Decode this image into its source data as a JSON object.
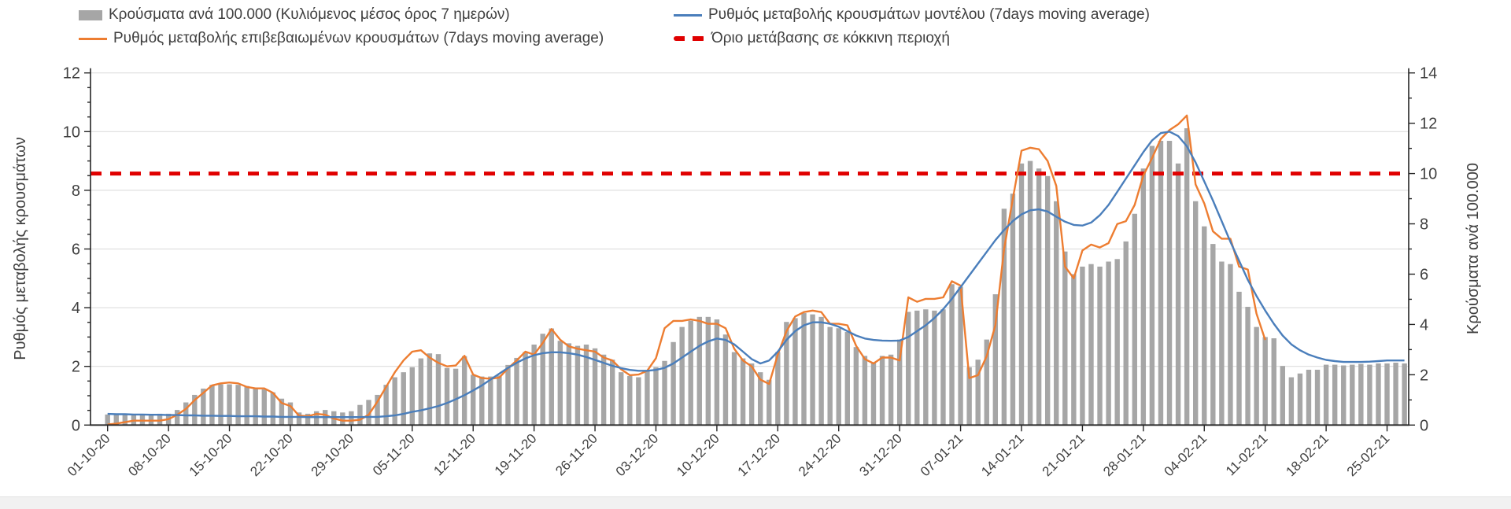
{
  "chart_data": {
    "type": "combo",
    "title": "",
    "grid": true,
    "legend_position": "top",
    "start_date": "01-10-20",
    "x_tick_interval_days": 7,
    "x_tick_labels": [
      "01-10-20",
      "08-10-20",
      "15-10-20",
      "22-10-20",
      "29-10-20",
      "05-11-20",
      "12-11-20",
      "19-11-20",
      "26-11-20",
      "03-12-20",
      "10-12-20",
      "17-12-20",
      "24-12-20",
      "31-12-20",
      "07-01-21",
      "14-01-21",
      "21-01-21",
      "28-01-21",
      "04-02-21",
      "11-02-21",
      "18-02-21",
      "25-02-21"
    ],
    "left_axis": {
      "label": "Ρυθμός μεταβολής κρουσμάτων",
      "min": 0,
      "max": 12,
      "tick_step": 2,
      "tick_values": [
        0,
        2,
        4,
        6,
        8,
        10,
        12
      ],
      "minor_step": 0.5
    },
    "right_axis": {
      "label": "Κρούσματα ανά 100.000",
      "min": 0,
      "max": 14,
      "tick_step": 2,
      "tick_values": [
        0,
        2,
        4,
        6,
        8,
        10,
        12,
        14
      ],
      "minor_step": 1
    },
    "series": [
      {
        "name": "Κρούσματα ανά 100.000 (Κυλιόμενος μέσος όρος 7 ημερών)",
        "type": "bar",
        "axis": "right",
        "color": "#a6a6a6",
        "values": [
          0.42,
          0.4,
          0.42,
          0.4,
          0.42,
          0.42,
          0.45,
          0.45,
          0.6,
          0.9,
          1.2,
          1.45,
          1.6,
          1.62,
          1.62,
          1.6,
          1.55,
          1.45,
          1.42,
          1.3,
          1.05,
          0.9,
          0.5,
          0.45,
          0.55,
          0.6,
          0.55,
          0.5,
          0.55,
          0.8,
          1.0,
          1.2,
          1.6,
          1.9,
          2.1,
          2.3,
          2.65,
          2.85,
          2.82,
          2.27,
          2.24,
          2.74,
          2.0,
          1.93,
          1.93,
          1.97,
          2.39,
          2.67,
          2.91,
          3.2,
          3.63,
          3.84,
          3.35,
          3.25,
          3.15,
          3.2,
          3.05,
          2.8,
          2.6,
          2.1,
          1.95,
          1.9,
          2.15,
          2.3,
          2.55,
          3.3,
          3.9,
          4.15,
          4.3,
          4.3,
          4.2,
          3.6,
          2.9,
          2.65,
          2.45,
          2.1,
          1.8,
          2.9,
          4.1,
          4.25,
          4.45,
          4.4,
          4.3,
          3.9,
          3.85,
          3.7,
          3.1,
          2.75,
          2.5,
          2.75,
          2.8,
          3.4,
          4.5,
          4.55,
          4.6,
          4.55,
          4.6,
          5.6,
          5.5,
          2.3,
          2.6,
          3.4,
          5.2,
          8.6,
          9.2,
          10.4,
          10.5,
          10.2,
          9.9,
          8.9,
          6.9,
          6.0,
          6.3,
          6.4,
          6.3,
          6.5,
          6.6,
          7.3,
          8.4,
          10.2,
          11.1,
          11.3,
          11.3,
          10.4,
          11.8,
          8.9,
          7.9,
          7.2,
          6.5,
          6.4,
          5.3,
          4.7,
          3.9,
          3.5,
          3.45,
          2.35,
          1.9,
          2.05,
          2.2,
          2.2,
          2.4,
          2.4,
          2.37,
          2.4,
          2.43,
          2.4,
          2.45,
          2.45,
          2.48,
          2.45
        ]
      },
      {
        "name": "Ρυθμός μεταβολής επιβεβαιωμένων κρουσμάτων (7days moving average)",
        "type": "line",
        "axis": "left",
        "color": "#ed7d31",
        "values": [
          0.02,
          0.05,
          0.1,
          0.15,
          0.15,
          0.15,
          0.15,
          0.2,
          0.35,
          0.55,
          0.85,
          1.1,
          1.35,
          1.42,
          1.45,
          1.42,
          1.3,
          1.25,
          1.25,
          1.1,
          0.75,
          0.65,
          0.32,
          0.3,
          0.38,
          0.35,
          0.22,
          0.15,
          0.15,
          0.18,
          0.35,
          0.8,
          1.3,
          1.8,
          2.2,
          2.5,
          2.55,
          2.3,
          2.12,
          2.0,
          2.03,
          2.36,
          1.72,
          1.6,
          1.58,
          1.62,
          1.93,
          2.2,
          2.5,
          2.4,
          2.8,
          3.27,
          2.91,
          2.68,
          2.6,
          2.55,
          2.5,
          2.3,
          2.2,
          1.9,
          1.7,
          1.72,
          1.85,
          2.28,
          3.3,
          3.55,
          3.55,
          3.6,
          3.55,
          3.45,
          3.45,
          3.3,
          2.6,
          2.2,
          2.0,
          1.55,
          1.4,
          2.4,
          3.2,
          3.7,
          3.85,
          3.9,
          3.85,
          3.45,
          3.45,
          3.4,
          2.7,
          2.25,
          2.1,
          2.3,
          2.3,
          2.2,
          4.35,
          4.2,
          4.3,
          4.3,
          4.35,
          4.9,
          4.75,
          1.6,
          1.7,
          2.35,
          3.4,
          6.0,
          7.7,
          9.35,
          9.45,
          9.4,
          9.0,
          8.15,
          5.4,
          5.0,
          5.95,
          6.15,
          6.05,
          6.2,
          6.85,
          6.95,
          7.5,
          8.5,
          9.1,
          9.75,
          10.05,
          10.25,
          10.55,
          8.2,
          7.55,
          6.6,
          6.35,
          6.35,
          5.4,
          5.3,
          3.8,
          2.9
        ]
      },
      {
        "name": "Ρυθμός μεταβολής κρουσμάτων μοντέλου (7days moving average)",
        "type": "line",
        "axis": "left",
        "color": "#4a7ebb",
        "values": [
          0.38,
          0.37,
          0.37,
          0.36,
          0.36,
          0.35,
          0.35,
          0.34,
          0.34,
          0.33,
          0.33,
          0.32,
          0.32,
          0.31,
          0.31,
          0.3,
          0.3,
          0.3,
          0.29,
          0.29,
          0.28,
          0.28,
          0.28,
          0.27,
          0.27,
          0.27,
          0.27,
          0.27,
          0.27,
          0.27,
          0.28,
          0.28,
          0.3,
          0.33,
          0.38,
          0.45,
          0.5,
          0.57,
          0.65,
          0.75,
          0.88,
          1.02,
          1.18,
          1.35,
          1.55,
          1.75,
          1.95,
          2.12,
          2.27,
          2.38,
          2.45,
          2.48,
          2.48,
          2.45,
          2.4,
          2.32,
          2.22,
          2.12,
          2.02,
          1.94,
          1.88,
          1.85,
          1.85,
          1.88,
          1.95,
          2.1,
          2.3,
          2.5,
          2.7,
          2.85,
          2.95,
          2.9,
          2.75,
          2.5,
          2.25,
          2.1,
          2.2,
          2.5,
          2.9,
          3.2,
          3.4,
          3.5,
          3.5,
          3.45,
          3.35,
          3.2,
          3.05,
          2.95,
          2.9,
          2.88,
          2.87,
          2.88,
          3.0,
          3.2,
          3.4,
          3.65,
          3.95,
          4.3,
          4.7,
          5.1,
          5.5,
          5.9,
          6.3,
          6.65,
          6.95,
          7.18,
          7.32,
          7.35,
          7.28,
          7.1,
          6.93,
          6.82,
          6.8,
          6.9,
          7.15,
          7.5,
          7.95,
          8.4,
          8.85,
          9.3,
          9.7,
          9.95,
          10.0,
          9.85,
          9.5,
          8.95,
          8.3,
          7.65,
          6.95,
          6.25,
          5.6,
          4.95,
          4.4,
          3.9,
          3.45,
          3.05,
          2.75,
          2.55,
          2.4,
          2.3,
          2.22,
          2.18,
          2.15,
          2.15,
          2.15,
          2.16,
          2.18,
          2.2,
          2.2,
          2.2
        ]
      },
      {
        "name": "Όριο μετάβασης σε κόκκινη περιοχή",
        "type": "threshold",
        "axis": "right",
        "color": "#e00000",
        "dash": true,
        "value": 10
      }
    ]
  },
  "legend": {
    "bars_label": "Κρούσματα ανά 100.000 (Κυλιόμενος μέσος όρος 7 ημερών)",
    "confirmed_label": "Ρυθμός μεταβολής επιβεβαιωμένων κρουσμάτων (7days moving average)",
    "model_label": "Ρυθμός μεταβολής κρουσμάτων μοντέλου (7days moving average)",
    "threshold_label": "Όριο μετάβασης σε κόκκινη περιοχή"
  },
  "axes": {
    "left_title": "Ρυθμός μεταβολής κρουσμάτων",
    "right_title": "Κρούσματα ανά 100.000"
  },
  "colors": {
    "bars": "#a6a6a6",
    "confirmed_line": "#ed7d31",
    "model_line": "#4a7ebb",
    "threshold_line": "#e00000",
    "gridline": "#d9d9d9",
    "axis_line": "#262626",
    "text": "#404040"
  }
}
